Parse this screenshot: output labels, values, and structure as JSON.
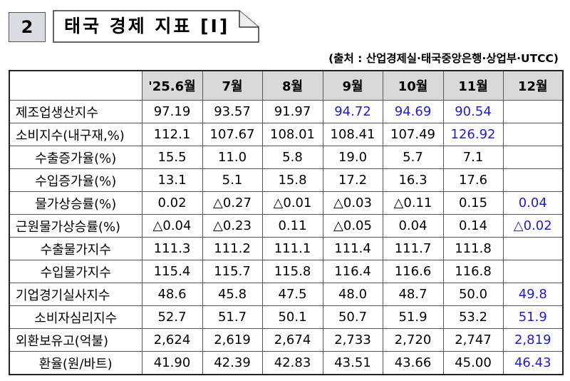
{
  "section": {
    "number": "2",
    "title": "태국 경제 지표 [Ⅰ]"
  },
  "source": "(출처 : 산업경제실·태국중앙은행·상업부·UTCC)",
  "table": {
    "headers": [
      "",
      "'25.6월",
      "7월",
      "8월",
      "9월",
      "10월",
      "11월",
      "12월"
    ],
    "rows": [
      {
        "label": "제조업생산지수",
        "values": [
          "97.19",
          "93.57",
          "91.97",
          "94.72",
          "94.69",
          "90.54",
          ""
        ],
        "blue": [
          false,
          false,
          false,
          true,
          true,
          true,
          false
        ]
      },
      {
        "label": "소비지수(내구재,%)",
        "values": [
          "112.1",
          "107.67",
          "108.01",
          "108.41",
          "107.49",
          "126.92",
          ""
        ],
        "blue": [
          false,
          false,
          false,
          false,
          false,
          true,
          false
        ]
      },
      {
        "label": "수출증가율(%)",
        "values": [
          "15.5",
          "11.0",
          "5.8",
          "19.0",
          "5.7",
          "7.1",
          ""
        ],
        "blue": [
          false,
          false,
          false,
          false,
          false,
          false,
          false
        ]
      },
      {
        "label": "수입증가율(%)",
        "values": [
          "13.1",
          "5.1",
          "15.8",
          "17.2",
          "16.3",
          "17.6",
          ""
        ],
        "blue": [
          false,
          false,
          false,
          false,
          false,
          false,
          false
        ]
      },
      {
        "label": "물가상승률(%)",
        "values": [
          "0.02",
          "△0.27",
          "△0.01",
          "△0.03",
          "△0.11",
          "0.15",
          "0.04"
        ],
        "blue": [
          false,
          false,
          false,
          false,
          false,
          false,
          true
        ]
      },
      {
        "label": "근원물가상승률(%)",
        "values": [
          "△0.04",
          "△0.23",
          "0.11",
          "△0.05",
          "0.04",
          "0.14",
          "△0.02"
        ],
        "blue": [
          false,
          false,
          false,
          false,
          false,
          false,
          true
        ]
      },
      {
        "label": "수출물가지수",
        "values": [
          "111.3",
          "111.2",
          "111.1",
          "111.4",
          "111.7",
          "111.8",
          ""
        ],
        "blue": [
          false,
          false,
          false,
          false,
          false,
          false,
          false
        ]
      },
      {
        "label": "수입물가지수",
        "values": [
          "115.4",
          "115.7",
          "115.8",
          "116.4",
          "116.6",
          "116.8",
          ""
        ],
        "blue": [
          false,
          false,
          false,
          false,
          false,
          false,
          false
        ]
      },
      {
        "label": "기업경기실사지수",
        "values": [
          "48.6",
          "45.8",
          "47.5",
          "48.0",
          "48.7",
          "50.0",
          "49.8"
        ],
        "blue": [
          false,
          false,
          false,
          false,
          false,
          false,
          true
        ]
      },
      {
        "label": "소비자심리지수",
        "values": [
          "52.7",
          "51.7",
          "50.1",
          "50.7",
          "51.9",
          "53.2",
          "51.9"
        ],
        "blue": [
          false,
          false,
          false,
          false,
          false,
          false,
          true
        ]
      },
      {
        "label": "외환보유고(억불)",
        "values": [
          "2,624",
          "2,619",
          "2,674",
          "2,733",
          "2,720",
          "2,747",
          "2,819"
        ],
        "blue": [
          false,
          false,
          false,
          false,
          false,
          false,
          true
        ]
      },
      {
        "label": "환율(원/바트)",
        "values": [
          "41.90",
          "42.39",
          "42.83",
          "43.51",
          "43.66",
          "45.00",
          "46.43"
        ],
        "blue": [
          false,
          false,
          false,
          false,
          false,
          false,
          true
        ]
      }
    ]
  },
  "colors": {
    "value_blue": "#1c1cd6",
    "header_bg": "#d9d9d9",
    "number_box_bg": "#d9dde3"
  }
}
